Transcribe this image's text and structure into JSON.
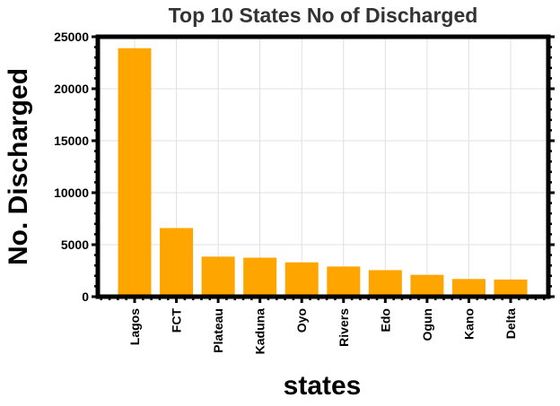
{
  "chart_data": {
    "type": "bar",
    "title": "Top 10 States No of Discharged",
    "xlabel": "states",
    "ylabel": "No. Discharged",
    "categories": [
      "Lagos",
      "FCT",
      "Plateau",
      "Kaduna",
      "Oyo",
      "Rivers",
      "Edo",
      "Ogun",
      "Kano",
      "Delta"
    ],
    "values": [
      23900,
      6600,
      3850,
      3750,
      3300,
      2900,
      2550,
      2100,
      1700,
      1650
    ],
    "ylim": [
      0,
      25000
    ],
    "yticks": [
      0,
      5000,
      10000,
      15000,
      20000,
      25000
    ],
    "ytick_labels": [
      "0",
      "5000",
      "10000",
      "15000",
      "20000",
      "25000"
    ],
    "grid": true,
    "bar_color": "#FFA500",
    "frame_color": "#000000"
  }
}
